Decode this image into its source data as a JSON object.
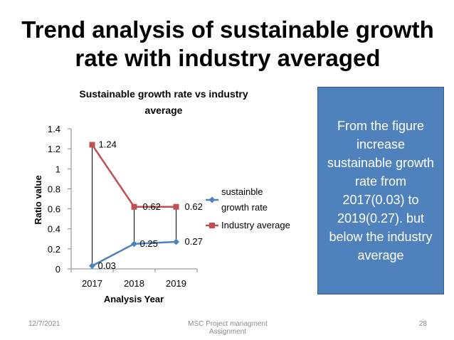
{
  "slide": {
    "title": "Trend analysis of sustainable growth rate with industry averaged",
    "callout_text": "From the figure increase sustainable growth rate from 2017(0.03) to 2019(0.27). but below the industry average",
    "footer": {
      "date": "12/7/2021",
      "center": "MSC Project managment Assignment",
      "page": "28"
    }
  },
  "chart_data": {
    "type": "line",
    "title": "Sustainable growth rate vs industry average",
    "xlabel": "Analysis Year",
    "ylabel": "Ratio value",
    "categories": [
      "2017",
      "2018",
      "2019"
    ],
    "ylim": [
      0,
      1.4
    ],
    "yticks": [
      "0",
      "0.2",
      "0.4",
      "0.6",
      "0.8",
      "1",
      "1.2",
      "1.4"
    ],
    "grid": false,
    "legend": "right",
    "drop_lines": true,
    "series": [
      {
        "name": "sustainble growth rate",
        "values": [
          0.03,
          0.25,
          0.27
        ],
        "labels": [
          "0.03",
          "0.25",
          "0.27"
        ],
        "color": "#4f81bd",
        "marker": "diamond"
      },
      {
        "name": "Industry average",
        "values": [
          1.24,
          0.62,
          0.62
        ],
        "labels": [
          "1.24",
          "0.62",
          "0.62"
        ],
        "color": "#c0504d",
        "marker": "square"
      }
    ]
  }
}
